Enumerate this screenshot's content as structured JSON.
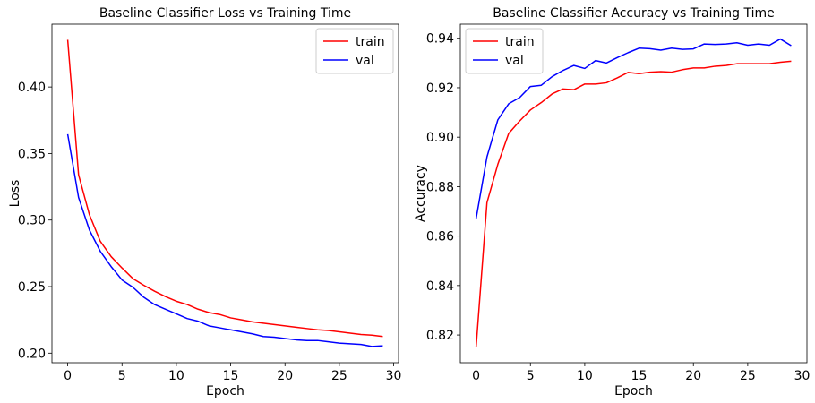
{
  "chart_data": [
    {
      "type": "line",
      "title": "Baseline Classifier Loss vs Training Time",
      "xlabel": "Epoch",
      "ylabel": "Loss",
      "xlim": [
        -1.45,
        30.45
      ],
      "ylim": [
        0.1928,
        0.4472
      ],
      "xticks": [
        0,
        5,
        10,
        15,
        20,
        25,
        30
      ],
      "yticks": [
        0.2,
        0.25,
        0.3,
        0.35,
        0.4
      ],
      "ytick_decimals": 2,
      "grid": false,
      "legend": "top-right",
      "x": [
        0,
        1,
        2,
        3,
        4,
        5,
        6,
        7,
        8,
        9,
        10,
        11,
        12,
        13,
        14,
        15,
        16,
        17,
        18,
        19,
        20,
        21,
        22,
        23,
        24,
        25,
        26,
        27,
        28,
        29
      ],
      "series": [
        {
          "name": "train",
          "color": "#ff0000",
          "values": [
            0.4355,
            0.334,
            0.304,
            0.284,
            0.2725,
            0.264,
            0.256,
            0.251,
            0.2465,
            0.2425,
            0.239,
            0.2365,
            0.233,
            0.2305,
            0.229,
            0.2265,
            0.225,
            0.2235,
            0.2225,
            0.2215,
            0.2205,
            0.2195,
            0.2185,
            0.2175,
            0.217,
            0.216,
            0.215,
            0.214,
            0.2135,
            0.2125
          ]
        },
        {
          "name": "val",
          "color": "#0000ff",
          "values": [
            0.3645,
            0.317,
            0.2925,
            0.2765,
            0.265,
            0.255,
            0.2495,
            0.242,
            0.2365,
            0.233,
            0.2295,
            0.226,
            0.224,
            0.2205,
            0.219,
            0.2175,
            0.216,
            0.2145,
            0.2125,
            0.212,
            0.211,
            0.21,
            0.2095,
            0.2095,
            0.2085,
            0.2075,
            0.207,
            0.2065,
            0.205,
            0.2055
          ]
        }
      ]
    },
    {
      "type": "line",
      "title": "Baseline Classifier Accuracy vs Training Time",
      "xlabel": "Epoch",
      "ylabel": "Accuracy",
      "xlim": [
        -1.45,
        30.45
      ],
      "ylim": [
        0.8088,
        0.9457
      ],
      "xticks": [
        0,
        5,
        10,
        15,
        20,
        25,
        30
      ],
      "yticks": [
        0.82,
        0.84,
        0.86,
        0.88,
        0.9,
        0.92,
        0.94
      ],
      "ytick_decimals": 2,
      "grid": false,
      "legend": "top-left",
      "x": [
        0,
        1,
        2,
        3,
        4,
        5,
        6,
        7,
        8,
        9,
        10,
        11,
        12,
        13,
        14,
        15,
        16,
        17,
        18,
        19,
        20,
        21,
        22,
        23,
        24,
        25,
        26,
        27,
        28,
        29
      ],
      "series": [
        {
          "name": "train",
          "color": "#ff0000",
          "values": [
            0.815,
            0.8735,
            0.889,
            0.9015,
            0.9065,
            0.911,
            0.914,
            0.9175,
            0.9195,
            0.9192,
            0.9215,
            0.9215,
            0.922,
            0.924,
            0.9262,
            0.9257,
            0.9263,
            0.9265,
            0.9263,
            0.9273,
            0.928,
            0.928,
            0.9287,
            0.929,
            0.9297,
            0.9297,
            0.9297,
            0.9297,
            0.9303,
            0.9307
          ]
        },
        {
          "name": "val",
          "color": "#0000ff",
          "values": [
            0.867,
            0.892,
            0.907,
            0.9135,
            0.916,
            0.9205,
            0.921,
            0.9245,
            0.927,
            0.929,
            0.9278,
            0.931,
            0.93,
            0.9322,
            0.9342,
            0.936,
            0.9358,
            0.9352,
            0.936,
            0.9355,
            0.9357,
            0.9377,
            0.9375,
            0.9377,
            0.9382,
            0.9372,
            0.9377,
            0.9372,
            0.9397,
            0.937
          ]
        }
      ]
    }
  ]
}
